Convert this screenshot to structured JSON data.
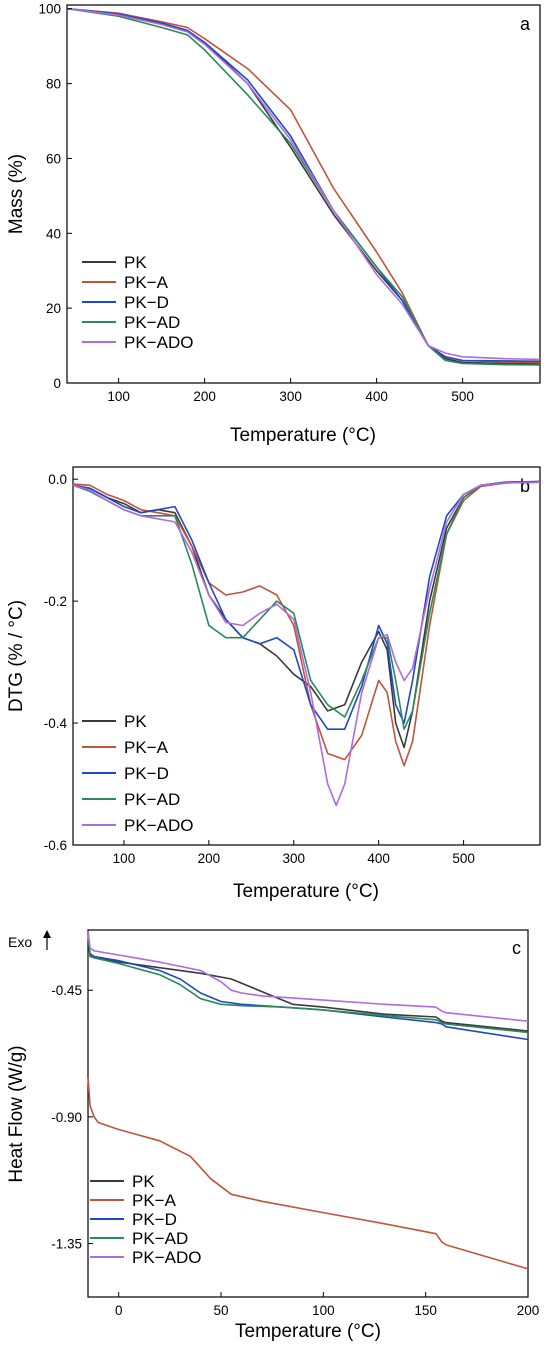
{
  "colors": {
    "PK": "#3a3a3a",
    "PK-A": "#c0543a",
    "PK-D": "#1f49c4",
    "PK-AD": "#2a8a5a",
    "PK-ADO": "#b06ae0"
  },
  "chart_data": [
    {
      "panel": "a",
      "type": "line",
      "xlabel": "Temperature (°C)",
      "ylabel": "Mass (%)",
      "xlim": [
        40,
        590
      ],
      "ylim": [
        0,
        101
      ],
      "xticks": [
        100,
        200,
        300,
        400,
        500
      ],
      "yticks": [
        0,
        20,
        40,
        60,
        80,
        100
      ],
      "yticklabels": [
        "0",
        "20",
        "40",
        "60",
        "80",
        "100"
      ],
      "legend": "bottom-left",
      "grid": false,
      "series": [
        {
          "name": "PK",
          "x": [
            40,
            100,
            150,
            180,
            200,
            250,
            300,
            350,
            400,
            430,
            460,
            480,
            500,
            550,
            590
          ],
          "y": [
            100,
            98.5,
            96,
            94,
            91,
            80,
            63,
            45,
            30,
            22,
            10,
            6.5,
            5.5,
            5.2,
            5.1
          ]
        },
        {
          "name": "PK-A",
          "x": [
            40,
            100,
            150,
            180,
            200,
            250,
            300,
            350,
            400,
            430,
            460,
            480,
            500,
            550,
            590
          ],
          "y": [
            100,
            98.8,
            96.5,
            95,
            92,
            84,
            73,
            52,
            35,
            24,
            10,
            7,
            6,
            5.6,
            5.5
          ]
        },
        {
          "name": "PK-D",
          "x": [
            40,
            100,
            150,
            180,
            200,
            250,
            300,
            350,
            400,
            430,
            460,
            480,
            500,
            550,
            590
          ],
          "y": [
            100,
            98.6,
            96.2,
            94.2,
            91,
            81,
            66,
            46,
            31,
            22,
            10,
            7,
            6,
            5.9,
            5.8
          ]
        },
        {
          "name": "PK-AD",
          "x": [
            40,
            100,
            150,
            180,
            200,
            250,
            300,
            350,
            400,
            430,
            460,
            480,
            500,
            550,
            590
          ],
          "y": [
            100,
            98,
            95,
            93,
            89,
            77,
            64,
            46,
            31,
            23,
            10,
            6,
            5.2,
            4.9,
            4.8
          ]
        },
        {
          "name": "PK-ADO",
          "x": [
            40,
            100,
            150,
            180,
            200,
            250,
            300,
            350,
            400,
            430,
            460,
            480,
            500,
            550,
            590
          ],
          "y": [
            100,
            98.3,
            95.8,
            93.8,
            90.5,
            80,
            65,
            46,
            29,
            21,
            10,
            8,
            7,
            6.5,
            6.3
          ]
        }
      ]
    },
    {
      "panel": "b",
      "type": "line",
      "xlabel": "Temperature (°C)",
      "ylabel": "DTG (% / °C)",
      "xlim": [
        40,
        590
      ],
      "ylim": [
        -0.6,
        0.02
      ],
      "xticks": [
        100,
        200,
        300,
        400,
        500
      ],
      "yticks": [
        0,
        -0.2,
        -0.4,
        -0.6
      ],
      "yticklabels": [
        "0.0",
        "-0.2",
        "-0.4",
        "-0.6"
      ],
      "legend": "bottom-left",
      "grid": false,
      "series": [
        {
          "name": "PK",
          "x": [
            40,
            60,
            80,
            100,
            120,
            140,
            160,
            180,
            200,
            220,
            240,
            260,
            280,
            300,
            320,
            340,
            360,
            380,
            400,
            410,
            420,
            430,
            440,
            460,
            480,
            500,
            520,
            550,
            590
          ],
          "y": [
            -0.01,
            -0.015,
            -0.03,
            -0.04,
            -0.055,
            -0.05,
            -0.055,
            -0.11,
            -0.19,
            -0.23,
            -0.26,
            -0.27,
            -0.29,
            -0.32,
            -0.34,
            -0.38,
            -0.37,
            -0.3,
            -0.25,
            -0.28,
            -0.4,
            -0.44,
            -0.38,
            -0.2,
            -0.08,
            -0.03,
            -0.01,
            -0.005,
            -0.004
          ]
        },
        {
          "name": "PK-A",
          "x": [
            40,
            60,
            80,
            100,
            120,
            140,
            160,
            180,
            200,
            220,
            240,
            260,
            280,
            300,
            320,
            340,
            360,
            380,
            400,
            410,
            420,
            430,
            440,
            460,
            480,
            500,
            520,
            550,
            590
          ],
          "y": [
            -0.008,
            -0.01,
            -0.025,
            -0.035,
            -0.05,
            -0.055,
            -0.06,
            -0.11,
            -0.17,
            -0.19,
            -0.185,
            -0.175,
            -0.19,
            -0.24,
            -0.37,
            -0.45,
            -0.46,
            -0.42,
            -0.33,
            -0.35,
            -0.43,
            -0.47,
            -0.43,
            -0.24,
            -0.09,
            -0.035,
            -0.012,
            -0.006,
            -0.005
          ]
        },
        {
          "name": "PK-D",
          "x": [
            40,
            60,
            80,
            100,
            120,
            140,
            160,
            180,
            200,
            220,
            240,
            260,
            280,
            300,
            320,
            340,
            360,
            380,
            400,
            410,
            420,
            430,
            440,
            460,
            480,
            500,
            520,
            550,
            590
          ],
          "y": [
            -0.01,
            -0.015,
            -0.03,
            -0.045,
            -0.055,
            -0.05,
            -0.045,
            -0.1,
            -0.17,
            -0.23,
            -0.26,
            -0.27,
            -0.26,
            -0.28,
            -0.37,
            -0.41,
            -0.41,
            -0.34,
            -0.24,
            -0.27,
            -0.37,
            -0.4,
            -0.33,
            -0.16,
            -0.06,
            -0.025,
            -0.01,
            -0.005,
            -0.004
          ]
        },
        {
          "name": "PK-AD",
          "x": [
            40,
            60,
            80,
            100,
            120,
            140,
            160,
            180,
            200,
            220,
            240,
            260,
            280,
            300,
            320,
            340,
            360,
            380,
            400,
            410,
            420,
            430,
            440,
            460,
            480,
            500,
            520,
            550,
            590
          ],
          "y": [
            -0.01,
            -0.02,
            -0.035,
            -0.05,
            -0.06,
            -0.06,
            -0.06,
            -0.14,
            -0.24,
            -0.26,
            -0.26,
            -0.23,
            -0.2,
            -0.22,
            -0.33,
            -0.37,
            -0.39,
            -0.33,
            -0.26,
            -0.26,
            -0.33,
            -0.41,
            -0.38,
            -0.22,
            -0.09,
            -0.03,
            -0.01,
            -0.006,
            -0.005
          ]
        },
        {
          "name": "PK-ADO",
          "x": [
            40,
            60,
            80,
            100,
            120,
            140,
            160,
            180,
            200,
            220,
            240,
            260,
            280,
            300,
            320,
            340,
            350,
            360,
            380,
            400,
            410,
            420,
            430,
            440,
            460,
            480,
            500,
            520,
            550,
            590
          ],
          "y": [
            -0.01,
            -0.018,
            -0.035,
            -0.05,
            -0.06,
            -0.065,
            -0.07,
            -0.12,
            -0.19,
            -0.235,
            -0.24,
            -0.22,
            -0.205,
            -0.23,
            -0.35,
            -0.5,
            -0.535,
            -0.5,
            -0.35,
            -0.26,
            -0.255,
            -0.3,
            -0.33,
            -0.31,
            -0.18,
            -0.07,
            -0.025,
            -0.01,
            -0.006,
            -0.005
          ]
        }
      ]
    },
    {
      "panel": "c",
      "type": "line",
      "xlabel": "Temperature (°C)",
      "ylabel": "Heat Flow (W/g)",
      "annotation": "Exo",
      "xlim": [
        -15,
        200
      ],
      "ylim": [
        -1.54,
        -0.236
      ],
      "xticks": [
        0,
        50,
        100,
        150,
        200
      ],
      "yticks": [
        -0.45,
        -0.9,
        -1.35
      ],
      "yticklabels": [
        "-0.45",
        "-0.90",
        "-1.35"
      ],
      "legend": "bottom-left",
      "grid": false,
      "series": [
        {
          "name": "PK",
          "x": [
            -15,
            -14,
            -12,
            0,
            20,
            40,
            55,
            65,
            75,
            85,
            100,
            130,
            155,
            158,
            160,
            200
          ],
          "y": [
            -0.24,
            -0.32,
            -0.33,
            -0.35,
            -0.37,
            -0.39,
            -0.41,
            -0.44,
            -0.47,
            -0.5,
            -0.51,
            -0.535,
            -0.545,
            -0.56,
            -0.565,
            -0.595
          ]
        },
        {
          "name": "PK-A",
          "x": [
            -15,
            -14,
            -12,
            -10,
            0,
            20,
            35,
            45,
            55,
            70,
            100,
            130,
            155,
            158,
            160,
            200
          ],
          "y": [
            -0.76,
            -0.86,
            -0.9,
            -0.92,
            -0.945,
            -0.985,
            -1.04,
            -1.12,
            -1.175,
            -1.2,
            -1.24,
            -1.28,
            -1.315,
            -1.345,
            -1.355,
            -1.44
          ]
        },
        {
          "name": "PK-D",
          "x": [
            -15,
            -14,
            -12,
            0,
            20,
            30,
            40,
            50,
            60,
            80,
            100,
            130,
            155,
            158,
            160,
            200
          ],
          "y": [
            -0.245,
            -0.325,
            -0.33,
            -0.345,
            -0.38,
            -0.41,
            -0.46,
            -0.49,
            -0.5,
            -0.51,
            -0.52,
            -0.545,
            -0.565,
            -0.57,
            -0.58,
            -0.625
          ]
        },
        {
          "name": "PK-AD",
          "x": [
            -15,
            -14,
            -12,
            0,
            20,
            30,
            40,
            50,
            60,
            80,
            100,
            130,
            155,
            158,
            160,
            200
          ],
          "y": [
            -0.25,
            -0.33,
            -0.335,
            -0.355,
            -0.395,
            -0.43,
            -0.48,
            -0.5,
            -0.505,
            -0.51,
            -0.52,
            -0.54,
            -0.555,
            -0.565,
            -0.57,
            -0.6
          ]
        },
        {
          "name": "PK-ADO",
          "x": [
            -15,
            -14,
            -12,
            0,
            20,
            40,
            50,
            55,
            60,
            70,
            100,
            130,
            155,
            158,
            160,
            200
          ],
          "y": [
            -0.24,
            -0.3,
            -0.31,
            -0.325,
            -0.35,
            -0.38,
            -0.42,
            -0.45,
            -0.46,
            -0.47,
            -0.485,
            -0.5,
            -0.51,
            -0.525,
            -0.53,
            -0.56
          ]
        }
      ]
    }
  ]
}
